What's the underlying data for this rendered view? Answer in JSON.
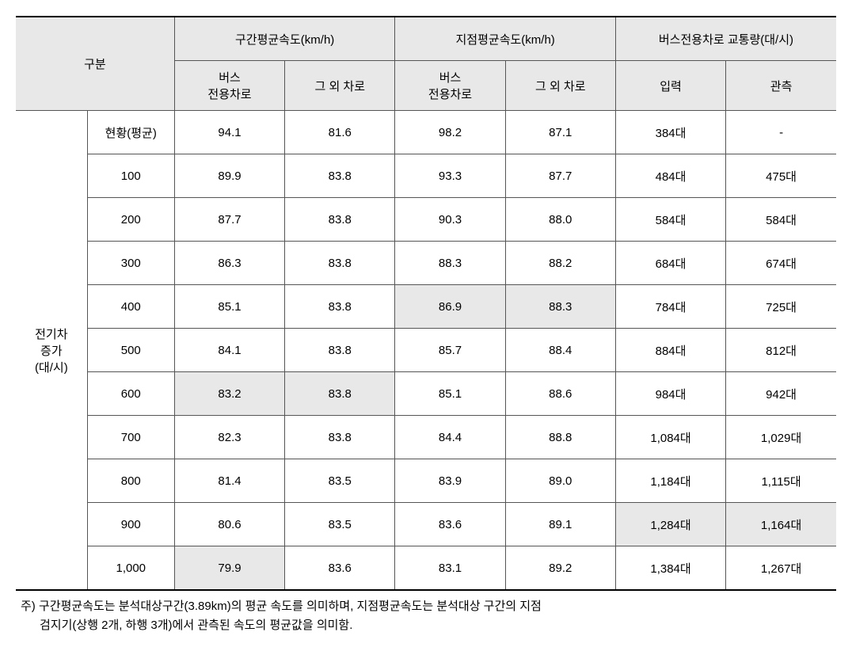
{
  "header": {
    "category_label": "구분",
    "group1": "구간평균속도(km/h)",
    "group2": "지점평균속도(km/h)",
    "group3": "버스전용차로 교통량(대/시)",
    "sub_bus": "버스\n전용차로",
    "sub_other": "그 외 차로",
    "sub_input": "입력",
    "sub_observe": "관측"
  },
  "row_label": "전기차\n증가\n(대/시)",
  "rows": [
    {
      "sub": "현황(평균)",
      "c1": "94.1",
      "c2": "81.6",
      "c3": "98.2",
      "c4": "87.1",
      "c5": "384대",
      "c6": "-",
      "shade": []
    },
    {
      "sub": "100",
      "c1": "89.9",
      "c2": "83.8",
      "c3": "93.3",
      "c4": "87.7",
      "c5": "484대",
      "c6": "475대",
      "shade": []
    },
    {
      "sub": "200",
      "c1": "87.7",
      "c2": "83.8",
      "c3": "90.3",
      "c4": "88.0",
      "c5": "584대",
      "c6": "584대",
      "shade": []
    },
    {
      "sub": "300",
      "c1": "86.3",
      "c2": "83.8",
      "c3": "88.3",
      "c4": "88.2",
      "c5": "684대",
      "c6": "674대",
      "shade": []
    },
    {
      "sub": "400",
      "c1": "85.1",
      "c2": "83.8",
      "c3": "86.9",
      "c4": "88.3",
      "c5": "784대",
      "c6": "725대",
      "shade": [
        "c3",
        "c4"
      ]
    },
    {
      "sub": "500",
      "c1": "84.1",
      "c2": "83.8",
      "c3": "85.7",
      "c4": "88.4",
      "c5": "884대",
      "c6": "812대",
      "shade": []
    },
    {
      "sub": "600",
      "c1": "83.2",
      "c2": "83.8",
      "c3": "85.1",
      "c4": "88.6",
      "c5": "984대",
      "c6": "942대",
      "shade": [
        "c1",
        "c2"
      ]
    },
    {
      "sub": "700",
      "c1": "82.3",
      "c2": "83.8",
      "c3": "84.4",
      "c4": "88.8",
      "c5": "1,084대",
      "c6": "1,029대",
      "shade": []
    },
    {
      "sub": "800",
      "c1": "81.4",
      "c2": "83.5",
      "c3": "83.9",
      "c4": "89.0",
      "c5": "1,184대",
      "c6": "1,115대",
      "shade": []
    },
    {
      "sub": "900",
      "c1": "80.6",
      "c2": "83.5",
      "c3": "83.6",
      "c4": "89.1",
      "c5": "1,284대",
      "c6": "1,164대",
      "shade": [
        "c5",
        "c6"
      ]
    },
    {
      "sub": "1,000",
      "c1": "79.9",
      "c2": "83.6",
      "c3": "83.1",
      "c4": "89.2",
      "c5": "1,384대",
      "c6": "1,267대",
      "shade": [
        "c1"
      ]
    }
  ],
  "footnote_l1": "주) 구간평균속도는 분석대상구간(3.89km)의 평균 속도를 의미하며, 지점평균속도는 분석대상 구간의 지점",
  "footnote_l2": "검지기(상행 2개, 하행 3개)에서 관측된 속도의 평균값을 의미함.",
  "colors": {
    "header_bg": "#e8e8e8",
    "shade_bg": "#e8e8e8",
    "border": "#555",
    "thick_border": "#000",
    "text": "#000",
    "background": "#fff"
  }
}
